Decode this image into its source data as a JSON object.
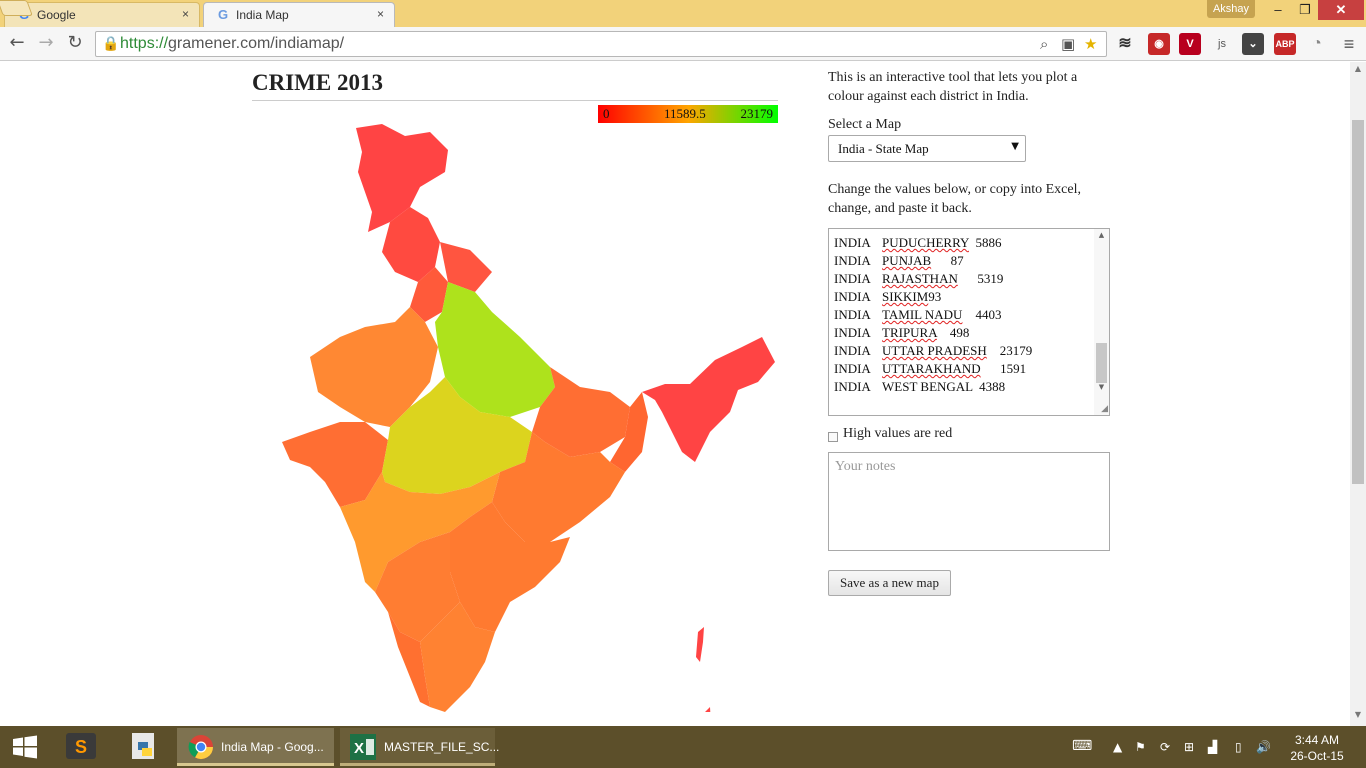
{
  "browser": {
    "tabs": [
      {
        "title": "Google",
        "favicon": "G"
      },
      {
        "title": "India Map",
        "favicon": "G"
      }
    ],
    "tab_close": "×",
    "user": "Akshay",
    "window_controls": {
      "minimize": "–",
      "maximize": "❐",
      "close": "✕"
    },
    "url_scheme": "https://",
    "url_rest": "gramener.com/indiamap/",
    "extension_badges": {
      "js": "js",
      "abp": "ABP"
    }
  },
  "page": {
    "title": "CRIME 2013",
    "legend": {
      "min": "0",
      "mid": "11589.5",
      "max": "23179"
    },
    "intro": "This is an interactive tool that lets you plot a colour against each district in India.",
    "select_label": "Select a Map",
    "select_value": "India - State Map",
    "change_text": "Change the values below, or copy into Excel, change, and paste it back.",
    "data_rows": [
      {
        "country": "INDIA",
        "state": "PUDUCHERRY",
        "value": "5886"
      },
      {
        "country": "INDIA",
        "state": "PUNJAB",
        "value": "87"
      },
      {
        "country": "INDIA",
        "state": "RAJASTHAN",
        "value": "5319"
      },
      {
        "country": "INDIA",
        "state": "SIKKIM",
        "value": "93"
      },
      {
        "country": "INDIA",
        "state": "TAMIL NADU",
        "value": "4403"
      },
      {
        "country": "INDIA",
        "state": "TRIPURA",
        "value": "498"
      },
      {
        "country": "INDIA",
        "state": "UTTAR PRADESH",
        "value": "23179"
      },
      {
        "country": "INDIA",
        "state": "UTTARAKHAND",
        "value": "1591"
      },
      {
        "country": "INDIA",
        "state": "WEST BENGAL",
        "value": "4388"
      }
    ],
    "high_values_label": "High values are red",
    "high_values_checked": false,
    "notes_placeholder": "Your notes",
    "save_label": "Save as a new map"
  },
  "map_colors": {
    "north": "#ff4444",
    "west": "#ff8833",
    "up": "#aee21c",
    "mp": "#dcd41e",
    "east": "#ff6e33",
    "northeast": "#ff4444",
    "south": "#ff7a30",
    "maharashtra": "#ff9a2e",
    "islands": "#ff4444"
  },
  "taskbar": {
    "tasks": [
      {
        "label": "India Map - Goog...",
        "icon": "chrome-icon"
      },
      {
        "label": "MASTER_FILE_SC...",
        "icon": "excel-icon"
      }
    ],
    "time": "3:44 AM",
    "date": "26-Oct-15"
  }
}
